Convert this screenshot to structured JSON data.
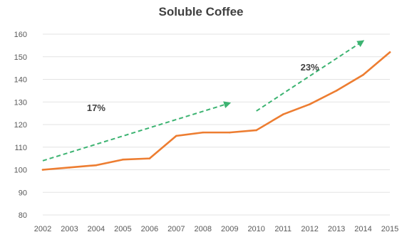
{
  "chart_data": {
    "type": "line",
    "title": "Soluble Coffee",
    "xlabel": "",
    "ylabel": "",
    "categories": [
      "2002",
      "2003",
      "2004",
      "2005",
      "2006",
      "2007",
      "2008",
      "2009",
      "2010",
      "2011",
      "2012",
      "2013",
      "2014",
      "2015"
    ],
    "ylim": [
      80,
      160
    ],
    "yticks": [
      80,
      90,
      100,
      110,
      120,
      130,
      140,
      150,
      160
    ],
    "grid": true,
    "legend": "none",
    "series": [
      {
        "color": "#ED7D31",
        "values": [
          100,
          101,
          102,
          104.5,
          105,
          115,
          116.5,
          116.5,
          117.5,
          124.5,
          129,
          135,
          142,
          152
        ]
      }
    ],
    "annotations": [
      {
        "text": "17%",
        "label_x": "2004",
        "label_y": 126,
        "arrow": {
          "from": [
            "2002",
            104
          ],
          "to": [
            "2009",
            129.5
          ]
        },
        "color": "#3CB371",
        "style": "dashed"
      },
      {
        "text": "23%",
        "label_x": "2012",
        "label_y": 144,
        "arrow": {
          "from": [
            "2010",
            126
          ],
          "to": [
            "2014",
            157
          ]
        },
        "color": "#3CB371",
        "style": "dashed"
      }
    ]
  }
}
